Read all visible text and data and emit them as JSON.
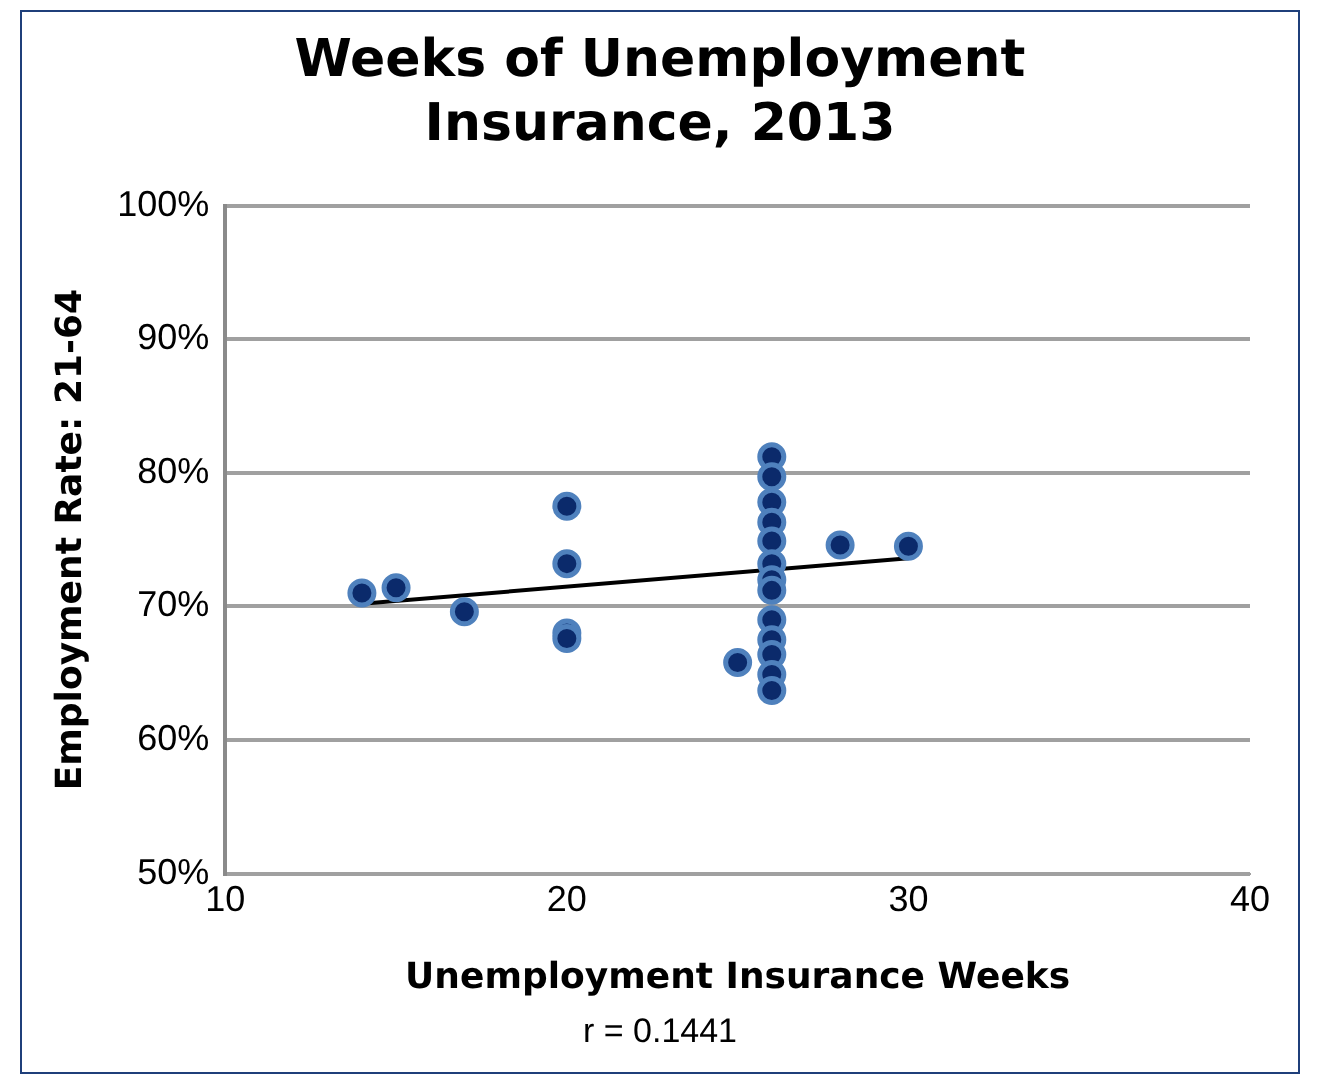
{
  "chart_data": {
    "type": "scatter",
    "title": "Weeks of Unemployment Insurance, 2013",
    "xlabel": "Unemployment Insurance Weeks",
    "ylabel": "Employment Rate: 21-64",
    "annotations": [
      "r = 0.1441"
    ],
    "xlim": [
      10,
      40
    ],
    "xticks": [
      10,
      20,
      30,
      40
    ],
    "ylim": [
      50,
      100
    ],
    "yticks": [
      {
        "value": 50,
        "label": "50%"
      },
      {
        "value": 60,
        "label": "60%"
      },
      {
        "value": 70,
        "label": "70%"
      },
      {
        "value": 80,
        "label": "80%"
      },
      {
        "value": 90,
        "label": "90%"
      },
      {
        "value": 100,
        "label": "100%"
      }
    ],
    "grid": "y",
    "marker": "circle",
    "legend": false,
    "series": [
      {
        "color": "#0b2a6b",
        "x": [
          14,
          15,
          17,
          20,
          20,
          20,
          20,
          25,
          26,
          26,
          26,
          26,
          26,
          26,
          26,
          26,
          26,
          26,
          26,
          26,
          26,
          28,
          30
        ],
        "values": [
          71.0,
          71.4,
          69.6,
          77.5,
          73.2,
          68.0,
          67.6,
          65.8,
          81.2,
          79.7,
          77.8,
          76.3,
          74.9,
          73.2,
          72.0,
          71.2,
          69.0,
          67.5,
          66.4,
          64.9,
          63.7,
          74.6,
          74.5
        ]
      },
      {
        "type": "line",
        "color": "#000000",
        "marker": "none",
        "x": [
          14,
          30
        ],
        "values": [
          70.2,
          73.6
        ]
      }
    ]
  }
}
